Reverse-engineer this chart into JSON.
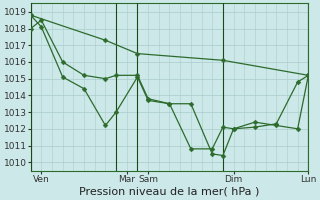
{
  "xlabel": "Pression niveau de la mer( hPa )",
  "bg_color": "#cce8e8",
  "plot_bg_color": "#cce8e8",
  "grid_color": "#aacccc",
  "line_color": "#2d6b2d",
  "vline_color": "#1a4a1a",
  "ylim": [
    1009.5,
    1019.5
  ],
  "yticks": [
    1010,
    1011,
    1012,
    1013,
    1014,
    1015,
    1016,
    1017,
    1018,
    1019
  ],
  "xlim": [
    0,
    13
  ],
  "xtick_positions": [
    0.5,
    4.5,
    5.5,
    9.5,
    13.0
  ],
  "xtick_labels": [
    "Ven",
    "Mar",
    "Sam",
    "Dim",
    "Lun"
  ],
  "vline_positions": [
    0,
    4,
    5,
    9,
    13
  ],
  "line1_x": [
    0.0,
    0.5,
    1.5,
    2.5,
    3.5,
    4.0,
    5.0,
    5.5,
    6.5,
    7.5,
    8.5,
    9.0,
    9.5,
    10.5,
    11.5,
    12.5,
    13.0
  ],
  "line1_y": [
    1018.8,
    1018.1,
    1015.1,
    1014.4,
    1012.2,
    1013.0,
    1015.1,
    1013.7,
    1013.5,
    1013.5,
    1010.5,
    1010.4,
    1012.0,
    1012.1,
    1012.3,
    1014.8,
    1015.2
  ],
  "line2_x": [
    0.0,
    0.5,
    1.5,
    2.5,
    3.5,
    4.0,
    5.0,
    5.5,
    6.5,
    7.5,
    8.5,
    9.0,
    9.5,
    10.5,
    11.5,
    12.5,
    13.0
  ],
  "line2_y": [
    1018.0,
    1018.5,
    1016.0,
    1015.2,
    1015.0,
    1015.2,
    1015.2,
    1013.8,
    1013.5,
    1010.8,
    1010.8,
    1012.1,
    1012.0,
    1012.4,
    1012.2,
    1012.0,
    1015.2
  ],
  "line3_x": [
    0.0,
    3.5,
    5.0,
    9.0,
    13.0
  ],
  "line3_y": [
    1018.8,
    1017.3,
    1016.5,
    1016.1,
    1015.2
  ],
  "xlabel_fontsize": 8,
  "tick_fontsize": 6.5,
  "marker_size": 2.5,
  "linewidth": 0.9
}
